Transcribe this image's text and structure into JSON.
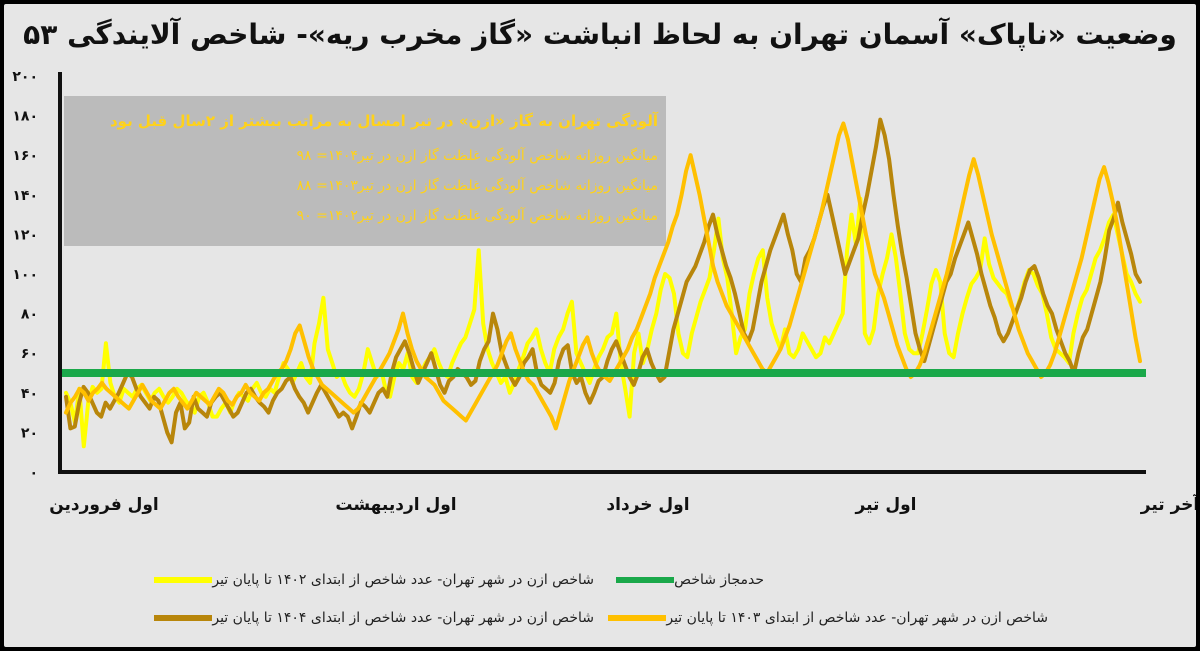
{
  "chart_data": {
    "type": "line",
    "title": "وضعیت «ناپاک» آسمان تهران به لحاظ انباشت «گاز مخرب ریه»- شاخص آلایندگی ۵۳",
    "ylim": [
      0,
      200
    ],
    "yticks": [
      "۰",
      "۲۰",
      "۴۰",
      "۶۰",
      "۸۰",
      "۱۰۰",
      "۱۲۰",
      "۱۴۰",
      "۱۶۰",
      "۱۸۰",
      "۲۰۰"
    ],
    "xtick_labels": [
      "اول فروردین",
      "اول اردیبهشت",
      "اول خرداد",
      "اول تیر",
      "آخر تیر"
    ],
    "annotation": {
      "headline": "آلودگی تهران به گاز «ازن» در تیر امسال به مراتب بیشتر از ۲سال قبل بود",
      "lines": [
        "میانگین روزانه شاخص آلودگی غلظت گاز ازن در تیر۱۴۰۴= ۹۸",
        "میانگین روزانه شاخص آلودگی غلظت گاز ازن در تیر۱۴۰۳= ۸۸",
        "میانگین روزانه شاخص آلودگی غلظت گاز ازن در تیر۱۴۰۲= ۹۰"
      ]
    },
    "threshold": {
      "name": "حدمجاز شاخص",
      "value": 50,
      "color": "#1aa84a"
    },
    "series": [
      {
        "name": "شاخص ازن در شهر تهران- عدد شاخص از ابتدای ۱۴۰۲ تا پایان تیر",
        "color": "#ffff00",
        "values": [
          40,
          35,
          25,
          42,
          13,
          35,
          43,
          40,
          42,
          65,
          45,
          38,
          35,
          42,
          40,
          38,
          42,
          44,
          40,
          36,
          40,
          42,
          38,
          35,
          38,
          42,
          40,
          36,
          33,
          30,
          38,
          40,
          35,
          28,
          28,
          32,
          35,
          30,
          36,
          40,
          38,
          36,
          42,
          45,
          40,
          38,
          42,
          40,
          48,
          55,
          52,
          45,
          50,
          55,
          48,
          45,
          65,
          75,
          88,
          62,
          55,
          48,
          50,
          44,
          40,
          38,
          42,
          50,
          62,
          55,
          48,
          52,
          42,
          38,
          48,
          55,
          52,
          60,
          48,
          45,
          50,
          55,
          58,
          62,
          55,
          50,
          48,
          55,
          60,
          65,
          68,
          75,
          82,
          112,
          75,
          62,
          55,
          50,
          45,
          48,
          40,
          45,
          52,
          58,
          65,
          68,
          72,
          62,
          55,
          50,
          62,
          68,
          72,
          80,
          86,
          60,
          55,
          50,
          45,
          52,
          58,
          62,
          68,
          70,
          80,
          55,
          42,
          28,
          60,
          70,
          55,
          62,
          72,
          80,
          92,
          100,
          98,
          90,
          70,
          60,
          58,
          70,
          78,
          86,
          92,
          98,
          112,
          128,
          108,
          98,
          80,
          60,
          68,
          72,
          90,
          100,
          108,
          112,
          88,
          75,
          68,
          62,
          72,
          60,
          58,
          62,
          70,
          66,
          62,
          58,
          60,
          68,
          65,
          70,
          75,
          80,
          112,
          130,
          115,
          138,
          70,
          65,
          72,
          90,
          100,
          108,
          120,
          108,
          90,
          70,
          62,
          60,
          60,
          70,
          82,
          95,
          102,
          96,
          70,
          60,
          58,
          70,
          80,
          88,
          95,
          98,
          102,
          118,
          105,
          98,
          95,
          92,
          90,
          84,
          80,
          88,
          96,
          102,
          100,
          94,
          90,
          80,
          68,
          62,
          60,
          58,
          55,
          70,
          80,
          88,
          92,
          100,
          108,
          112,
          118,
          126,
          130,
          120,
          110,
          100,
          96,
          90,
          86
        ]
      },
      {
        "name": "شاخص ازن در شهر تهران- عدد شاخص از ابتدای ۱۴۰۴ تا پایان تیر",
        "color": "#b8860b",
        "values": [
          38,
          22,
          23,
          35,
          43,
          40,
          35,
          30,
          28,
          35,
          32,
          36,
          40,
          45,
          50,
          48,
          42,
          38,
          35,
          32,
          38,
          36,
          28,
          20,
          15,
          30,
          35,
          22,
          25,
          38,
          32,
          30,
          28,
          35,
          38,
          40,
          36,
          32,
          28,
          30,
          35,
          40,
          42,
          38,
          35,
          33,
          30,
          36,
          40,
          42,
          46,
          48,
          42,
          38,
          35,
          30,
          35,
          40,
          44,
          40,
          36,
          32,
          28,
          30,
          28,
          22,
          28,
          35,
          33,
          30,
          35,
          40,
          42,
          38,
          50,
          58,
          62,
          66,
          60,
          52,
          45,
          50,
          55,
          60,
          52,
          44,
          40,
          46,
          48,
          52,
          50,
          48,
          44,
          46,
          56,
          62,
          66,
          80,
          72,
          60,
          54,
          48,
          44,
          48,
          55,
          58,
          62,
          50,
          44,
          42,
          40,
          45,
          56,
          62,
          64,
          50,
          45,
          48,
          40,
          35,
          40,
          46,
          48,
          56,
          62,
          66,
          60,
          54,
          48,
          44,
          50,
          58,
          62,
          55,
          50,
          46,
          48,
          60,
          72,
          80,
          88,
          96,
          100,
          104,
          110,
          116,
          124,
          130,
          120,
          112,
          104,
          98,
          90,
          80,
          70,
          66,
          72,
          84,
          96,
          104,
          112,
          118,
          124,
          130,
          120,
          112,
          100,
          96,
          108,
          112,
          118,
          126,
          134,
          140,
          130,
          120,
          110,
          100,
          106,
          112,
          118,
          130,
          140,
          152,
          164,
          178,
          170,
          158,
          140,
          124,
          110,
          98,
          84,
          70,
          62,
          56,
          64,
          72,
          80,
          88,
          96,
          100,
          108,
          114,
          120,
          126,
          118,
          110,
          100,
          92,
          84,
          78,
          70,
          66,
          70,
          76,
          82,
          88,
          96,
          102,
          104,
          98,
          90,
          84,
          80,
          72,
          66,
          60,
          56,
          50,
          60,
          68,
          72,
          80,
          88,
          96,
          108,
          122,
          128,
          136,
          126,
          118,
          110,
          100,
          96
        ]
      },
      {
        "name": "شاخص ازن در شهر تهران- عدد شاخص از ابتدای ۱۴۰۳ تا پایان تیر",
        "color": "#ffc000",
        "values": [
          30,
          35,
          38,
          42,
          40,
          36,
          40,
          42,
          45,
          42,
          40,
          38,
          36,
          34,
          32,
          36,
          40,
          44,
          40,
          36,
          34,
          32,
          36,
          40,
          42,
          38,
          35,
          32,
          36,
          40,
          38,
          36,
          34,
          38,
          42,
          40,
          36,
          34,
          38,
          40,
          44,
          40,
          38,
          36,
          40,
          42,
          46,
          50,
          52,
          56,
          62,
          70,
          74,
          66,
          58,
          52,
          48,
          44,
          42,
          40,
          38,
          36,
          34,
          32,
          30,
          32,
          36,
          40,
          44,
          48,
          52,
          56,
          60,
          66,
          72,
          80,
          70,
          62,
          56,
          52,
          48,
          46,
          44,
          40,
          36,
          34,
          32,
          30,
          28,
          26,
          30,
          34,
          38,
          42,
          46,
          50,
          54,
          60,
          66,
          70,
          62,
          56,
          50,
          46,
          44,
          40,
          36,
          32,
          28,
          22,
          30,
          38,
          46,
          52,
          58,
          64,
          68,
          60,
          54,
          50,
          48,
          46,
          50,
          54,
          58,
          62,
          68,
          72,
          78,
          84,
          90,
          98,
          104,
          110,
          116,
          124,
          130,
          140,
          152,
          160,
          150,
          140,
          128,
          116,
          104,
          96,
          90,
          84,
          80,
          76,
          72,
          68,
          64,
          60,
          56,
          52,
          50,
          54,
          58,
          62,
          68,
          74,
          82,
          90,
          98,
          106,
          114,
          122,
          130,
          140,
          150,
          160,
          170,
          176,
          168,
          156,
          144,
          132,
          120,
          110,
          100,
          94,
          88,
          80,
          72,
          64,
          58,
          52,
          48,
          50,
          54,
          60,
          68,
          76,
          84,
          92,
          100,
          110,
          120,
          130,
          140,
          150,
          158,
          150,
          140,
          130,
          120,
          112,
          104,
          96,
          88,
          80,
          72,
          66,
          60,
          56,
          52,
          48,
          50,
          54,
          60,
          68,
          76,
          84,
          92,
          100,
          108,
          118,
          128,
          138,
          148,
          154,
          146,
          136,
          124,
          110,
          96,
          82,
          68,
          56
        ]
      }
    ]
  }
}
